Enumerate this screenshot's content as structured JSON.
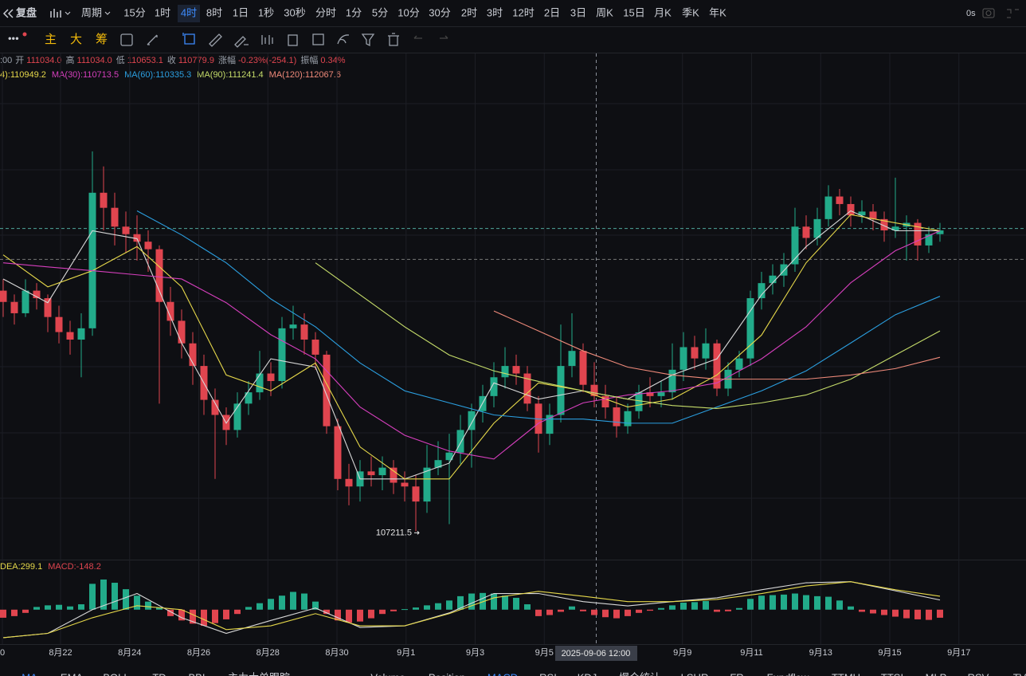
{
  "toolbar": {
    "back": "复盘",
    "period": "周期",
    "intervals": [
      "15分",
      "1时",
      "4时",
      "8时",
      "1日",
      "1秒",
      "30秒",
      "分时",
      "1分",
      "5分",
      "10分",
      "30分",
      "2时",
      "3时",
      "12时",
      "2日",
      "3日",
      "周K",
      "15日",
      "月K",
      "季K",
      "年K"
    ],
    "active": "4时",
    "latency": "0s"
  },
  "tools": {
    "main": "主",
    "big": "大",
    "chips": "筹"
  },
  "indicator_tabs": [
    "MA",
    "EMA",
    "BOLL",
    "TD",
    "BBI",
    "主力大单跟踪",
    "›",
    "Volume",
    "Position",
    "MACD",
    "RSI",
    "KDJ",
    "爆仓统计",
    "LSUR",
    "FR",
    "Fundflow",
    "TTMU",
    "TTSI",
    "MLP",
    "RSV",
    "TV"
  ],
  "active_tabs": [
    "MA",
    "MACD"
  ],
  "chart_data": {
    "type": "candlestick",
    "info_prefix": ":00",
    "info": [
      [
        "开",
        "111034.0"
      ],
      [
        "高",
        "111034.0"
      ],
      [
        "低",
        "110653.1"
      ],
      [
        "收",
        "110779.9"
      ],
      [
        "涨幅",
        "-0.23%(-254.1)"
      ],
      [
        "振幅",
        "0.34%"
      ]
    ],
    "up_color": "#22ab8a",
    "down_color": "#e0454f",
    "ylim": [
      106500,
      119900
    ],
    "candles": [
      [
        113600,
        113900,
        112900,
        113300
      ],
      [
        113300,
        113500,
        112700,
        113000
      ],
      [
        113000,
        113900,
        112900,
        113600
      ],
      [
        113600,
        113800,
        113100,
        113400
      ],
      [
        113400,
        113500,
        112500,
        112900
      ],
      [
        112900,
        113200,
        112200,
        112500
      ],
      [
        112500,
        112800,
        111900,
        112300
      ],
      [
        112300,
        113000,
        111300,
        112600
      ],
      [
        112600,
        117300,
        112400,
        116200
      ],
      [
        116200,
        116900,
        115200,
        115800
      ],
      [
        115800,
        116200,
        114800,
        115300
      ],
      [
        115300,
        115700,
        114600,
        115100
      ],
      [
        115100,
        115600,
        114400,
        114900
      ],
      [
        114900,
        115200,
        114100,
        114700
      ],
      [
        114700,
        114800,
        110600,
        113300
      ],
      [
        113300,
        113700,
        112400,
        112800
      ],
      [
        112800,
        113100,
        111800,
        112200
      ],
      [
        112200,
        112500,
        111100,
        111600
      ],
      [
        111600,
        111900,
        110300,
        110700
      ],
      [
        110700,
        111000,
        108600,
        110300
      ],
      [
        110300,
        110500,
        109500,
        109900
      ],
      [
        109900,
        110900,
        109700,
        110600
      ],
      [
        110600,
        111200,
        110300,
        110900
      ],
      [
        110900,
        112000,
        110700,
        111400
      ],
      [
        111400,
        111700,
        110800,
        111200
      ],
      [
        111200,
        112900,
        111000,
        112600
      ],
      [
        112600,
        113200,
        112300,
        112700
      ],
      [
        112700,
        113000,
        111900,
        112300
      ],
      [
        112300,
        112500,
        111500,
        111900
      ],
      [
        111900,
        112000,
        109800,
        110000
      ],
      [
        110000,
        110200,
        108300,
        108600
      ],
      [
        108600,
        109000,
        107900,
        108400
      ],
      [
        108400,
        109100,
        108000,
        108800
      ],
      [
        108800,
        109200,
        108400,
        108700
      ],
      [
        108700,
        109200,
        108300,
        108900
      ],
      [
        108900,
        109100,
        108200,
        108500
      ],
      [
        108500,
        108800,
        108000,
        108400
      ],
      [
        108400,
        108700,
        107211.5,
        108000
      ],
      [
        108000,
        109500,
        107700,
        108900
      ],
      [
        108900,
        109600,
        108700,
        109100
      ],
      [
        109100,
        109800,
        107400,
        109300
      ],
      [
        109300,
        110300,
        109000,
        109900
      ],
      [
        109900,
        110600,
        108900,
        110400
      ],
      [
        110400,
        111100,
        110100,
        110800
      ],
      [
        110800,
        111700,
        110500,
        111300
      ],
      [
        111300,
        112100,
        111000,
        111600
      ],
      [
        111600,
        111900,
        111100,
        111400
      ],
      [
        111400,
        111600,
        110400,
        110600
      ],
      [
        110600,
        110800,
        109300,
        109800
      ],
      [
        109800,
        110600,
        109500,
        110300
      ],
      [
        110300,
        112700,
        110100,
        111600
      ],
      [
        111600,
        113000,
        111300,
        112000
      ],
      [
        112000,
        112200,
        110900,
        111100
      ],
      [
        111100,
        111700,
        110500,
        110800
      ],
      [
        110800,
        111100,
        110200,
        110500
      ],
      [
        110500,
        110800,
        109700,
        110000
      ],
      [
        110000,
        110600,
        109800,
        110400
      ],
      [
        110400,
        111100,
        110200,
        110900
      ],
      [
        110900,
        111300,
        110500,
        110800
      ],
      [
        110800,
        111200,
        110500,
        110900
      ],
      [
        110900,
        112200,
        110700,
        111500
      ],
      [
        111500,
        112500,
        111200,
        112100
      ],
      [
        112100,
        112400,
        111500,
        111800
      ],
      [
        111800,
        112600,
        111500,
        112200
      ],
      [
        112200,
        112300,
        110800,
        111000
      ],
      [
        111000,
        111700,
        110800,
        111500
      ],
      [
        111500,
        112000,
        111300,
        111800
      ],
      [
        111800,
        113600,
        111600,
        113400
      ],
      [
        113400,
        114100,
        113100,
        113800
      ],
      [
        113800,
        114300,
        113500,
        114000
      ],
      [
        114000,
        114600,
        113700,
        114300
      ],
      [
        114300,
        115800,
        114100,
        115300
      ],
      [
        115300,
        115600,
        114700,
        115000
      ],
      [
        115000,
        115800,
        114800,
        115500
      ],
      [
        115500,
        116400,
        115300,
        116100
      ],
      [
        116100,
        116300,
        115600,
        115900
      ],
      [
        115900,
        116100,
        115300,
        115600
      ],
      [
        115600,
        116000,
        115400,
        115700
      ],
      [
        115700,
        115900,
        115200,
        115500
      ],
      [
        115500,
        115700,
        114900,
        115200
      ],
      [
        115200,
        116600,
        115000,
        115300
      ],
      [
        115300,
        115600,
        114400,
        115400
      ],
      [
        115400,
        115500,
        114400,
        114800
      ],
      [
        114800,
        115300,
        114600,
        115100
      ],
      [
        115100,
        115400,
        114900,
        115200
      ]
    ],
    "sample_index": [
      0,
      4,
      8,
      12,
      16,
      20,
      24,
      28,
      32,
      36,
      40,
      44,
      48,
      52,
      56,
      60,
      64,
      68,
      72,
      76,
      80,
      84
    ],
    "ma_lines": [
      {
        "color": "#d8d8d8",
        "values": [
          113910,
          113280,
          115190,
          114980,
          112210,
          110080,
          111790,
          111570,
          108600,
          108600,
          109020,
          111150,
          110720,
          110940,
          110720,
          111360,
          111790,
          113490,
          114770,
          115720,
          115190,
          115190
        ]
      },
      {
        "label": "4):110949.2",
        "color": "#e6d84a",
        "values": [
          114550,
          113700,
          114130,
          114770,
          113700,
          111360,
          110940,
          111680,
          109450,
          108600,
          108600,
          110080,
          111150,
          110940,
          110510,
          110720,
          111360,
          112420,
          114340,
          115620,
          115400,
          115190
        ]
      },
      {
        "label": "MA(30):110713.5",
        "color": "#d63fbd",
        "values": [
          114340,
          114230,
          114130,
          114020,
          113910,
          113280,
          112430,
          111790,
          110510,
          109760,
          109340,
          109130,
          110080,
          110620,
          110830,
          110940,
          111150,
          111790,
          112640,
          113810,
          114660,
          115190
        ]
      },
      {
        "label": "MA(60):110335.3",
        "color": "#2b9fe0",
        "values": [
          null,
          null,
          null,
          115720,
          115080,
          114340,
          113380,
          112640,
          111680,
          110940,
          110620,
          110300,
          110190,
          110190,
          110080,
          110080,
          110510,
          110940,
          111470,
          112210,
          112960,
          113450
        ]
      },
      {
        "label": "MA(90):111241.4",
        "color": "#c6dd6a",
        "values": [
          null,
          null,
          null,
          null,
          null,
          null,
          null,
          114340,
          113490,
          112640,
          111890,
          111470,
          111190,
          110940,
          110720,
          110550,
          110470,
          110620,
          110830,
          111250,
          111890,
          112530
        ]
      },
      {
        "label": "MA(120):112067.6",
        "color": "#ef8a7a",
        "values": [
          null,
          null,
          null,
          null,
          null,
          null,
          null,
          null,
          null,
          null,
          null,
          113060,
          112530,
          112000,
          111570,
          111360,
          111250,
          111250,
          111250,
          111360,
          111530,
          111830
        ]
      }
    ],
    "price_lines": [
      {
        "value": 115250,
        "color": "#4fa89c"
      },
      {
        "value": 114430,
        "color": "#777777"
      }
    ],
    "low_label": "107211.5",
    "x_labels": [
      "0",
      "8月22",
      "8月24",
      "8月26",
      "8月28",
      "8月30",
      "9月1",
      "9月3",
      "9月5",
      null,
      "9月9",
      "9月11",
      "9月13",
      "9月15",
      "9月17"
    ],
    "crosshair_label": "2025-09-06 12:00",
    "macd": {
      "legend": [
        {
          "text": "DEA:299.1",
          "color": "#e6d84a"
        },
        {
          "text": "MACD:-148.2",
          "color": "#e0454f"
        }
      ],
      "ylim": [
        -640,
        900
      ],
      "hist": [
        -150,
        -120,
        -60,
        50,
        80,
        90,
        60,
        100,
        480,
        560,
        500,
        380,
        260,
        150,
        40,
        -120,
        -200,
        -260,
        -300,
        -250,
        -180,
        -80,
        50,
        120,
        200,
        260,
        330,
        300,
        150,
        -80,
        -200,
        -240,
        -220,
        -160,
        -80,
        -30,
        10,
        40,
        80,
        120,
        170,
        250,
        300,
        310,
        300,
        260,
        220,
        100,
        -120,
        -100,
        -40,
        60,
        -30,
        -100,
        -140,
        -160,
        -120,
        -60,
        -20,
        30,
        80,
        130,
        140,
        160,
        -40,
        -30,
        30,
        200,
        260,
        270,
        280,
        300,
        270,
        250,
        240,
        170,
        60,
        -40,
        -70,
        -100,
        -130,
        -160,
        -180,
        -190,
        -150
      ],
      "dif": {
        "color": "#d8d8d8",
        "values": [
          -520,
          -440,
          0,
          300,
          -150,
          -440,
          -200,
          30,
          -330,
          -300,
          -60,
          300,
          300,
          150,
          70,
          150,
          220,
          370,
          500,
          520,
          350,
          180
        ]
      },
      "dea": {
        "color": "#e6d84a",
        "values": [
          -520,
          -440,
          -150,
          74,
          0,
          -370,
          -300,
          -74,
          -300,
          -300,
          -74,
          220,
          340,
          250,
          150,
          150,
          190,
          300,
          440,
          520,
          370,
          250
        ]
      }
    }
  }
}
